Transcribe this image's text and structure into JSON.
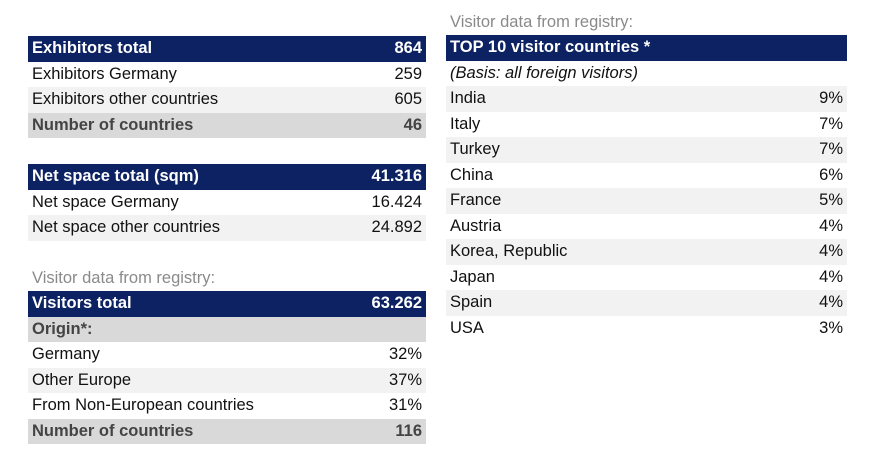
{
  "exhibitors": {
    "header": {
      "label": "Exhibitors total",
      "value": "864"
    },
    "rows": [
      {
        "label": "Exhibitors Germany",
        "value": "259"
      },
      {
        "label": "Exhibitors other countries",
        "value": "605"
      }
    ],
    "summary": {
      "label": "Number of countries",
      "value": "46"
    }
  },
  "net_space": {
    "header": {
      "label": "Net space total (sqm)",
      "value": "41.316"
    },
    "rows": [
      {
        "label": "Net space Germany",
        "value": "16.424"
      },
      {
        "label": "Net space other countries",
        "value": "24.892"
      }
    ]
  },
  "visitors": {
    "caption": "Visitor data from registry:",
    "header": {
      "label": "Visitors total",
      "value": "63.262"
    },
    "origin_label": "Origin*:",
    "rows": [
      {
        "label": "Germany",
        "value": "32%"
      },
      {
        "label": "Other Europe",
        "value": "37%"
      },
      {
        "label": "From Non-European countries",
        "value": "31%"
      }
    ],
    "summary": {
      "label": "Number of countries",
      "value": "116"
    }
  },
  "top10": {
    "caption": "Visitor data from registry:",
    "header": "TOP 10 visitor countries *",
    "basis": "(Basis: all foreign visitors)",
    "rows": [
      {
        "label": "India",
        "value": "9%"
      },
      {
        "label": "Italy",
        "value": "7%"
      },
      {
        "label": "Turkey",
        "value": "7%"
      },
      {
        "label": "China",
        "value": "6%"
      },
      {
        "label": "France",
        "value": "5%"
      },
      {
        "label": "Austria",
        "value": "4%"
      },
      {
        "label": "Korea, Republic",
        "value": "4%"
      },
      {
        "label": "Japan",
        "value": "4%"
      },
      {
        "label": "Spain",
        "value": "4%"
      },
      {
        "label": "USA",
        "value": "3%"
      }
    ]
  }
}
